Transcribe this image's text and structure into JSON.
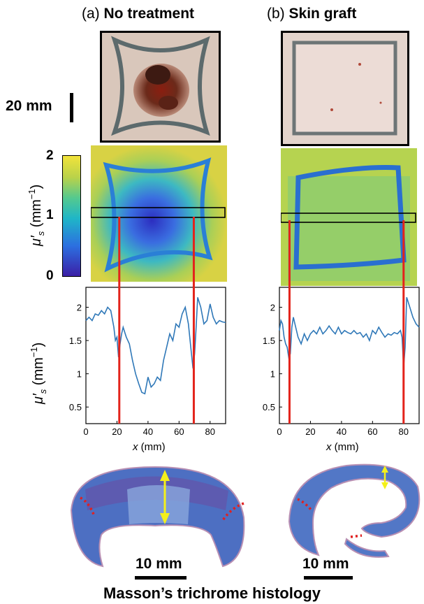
{
  "panels": {
    "a": {
      "tag": "(a)",
      "title": "No treatment"
    },
    "b": {
      "tag": "(b)",
      "title": "Skin graft"
    }
  },
  "photo_scale": "20 mm",
  "colorbar": {
    "ticks": [
      "2",
      "1",
      "0"
    ],
    "label_mu": "μ′",
    "label_sub": "s",
    "label_unit": "(mm",
    "label_exp": "−1",
    "label_close": ")",
    "colors": [
      "#3b1fa6",
      "#2c6fe0",
      "#1fb6c7",
      "#54c98f",
      "#b9d24a",
      "#f2e33a"
    ]
  },
  "histology": {
    "scale_a": "10 mm",
    "scale_b": "10 mm",
    "caption": "Masson’s trichrome histology"
  },
  "chart_data": [
    {
      "type": "line",
      "panel": "a",
      "xlabel_var": "x",
      "xlabel_unit": "(mm)",
      "ylabel": "μ′s (mm−1)",
      "xlim": [
        0,
        90
      ],
      "ylim": [
        0.25,
        2.3
      ],
      "xticks": [
        0,
        20,
        40,
        60,
        80
      ],
      "yticks": [
        0.5,
        1,
        1.5,
        2
      ],
      "ytick_labels": [
        "0.5",
        "1",
        "1.5",
        "2"
      ],
      "markers_x": [
        21.5,
        69.5
      ],
      "x": [
        0,
        2,
        4,
        6,
        8,
        10,
        12,
        14,
        16,
        18,
        19,
        20,
        21,
        22,
        23,
        24,
        26,
        28,
        30,
        32,
        34,
        36,
        38,
        40,
        42,
        44,
        46,
        48,
        50,
        52,
        54,
        56,
        58,
        60,
        62,
        64,
        66,
        68,
        69,
        70,
        71,
        72,
        74,
        76,
        78,
        80,
        82,
        84,
        86,
        88,
        90
      ],
      "y": [
        1.8,
        1.85,
        1.8,
        1.9,
        1.88,
        1.95,
        1.9,
        2.0,
        1.95,
        1.7,
        1.5,
        1.55,
        1.25,
        1.45,
        1.6,
        1.7,
        1.55,
        1.45,
        1.2,
        1.0,
        0.85,
        0.72,
        0.7,
        0.95,
        0.8,
        0.85,
        0.95,
        0.9,
        1.2,
        1.4,
        1.6,
        1.5,
        1.75,
        1.7,
        1.9,
        2.0,
        1.75,
        1.3,
        1.08,
        1.3,
        1.7,
        2.15,
        2.0,
        1.75,
        1.8,
        2.05,
        1.85,
        1.75,
        1.8,
        1.78,
        1.77
      ]
    },
    {
      "type": "line",
      "panel": "b",
      "xlabel_var": "x",
      "xlabel_unit": "(mm)",
      "xlim": [
        0,
        90
      ],
      "ylim": [
        0.25,
        2.3
      ],
      "xticks": [
        0,
        20,
        40,
        60,
        80
      ],
      "yticks": [
        0.5,
        1,
        1.5,
        2
      ],
      "ytick_labels": [
        "0.5",
        "1",
        "1.5",
        "2"
      ],
      "markers_x": [
        6.5,
        80
      ],
      "x": [
        0,
        1,
        2,
        3,
        4,
        5,
        6,
        7,
        8,
        9,
        10,
        12,
        14,
        16,
        18,
        20,
        22,
        24,
        26,
        28,
        30,
        32,
        34,
        36,
        38,
        40,
        42,
        44,
        46,
        48,
        50,
        52,
        54,
        56,
        58,
        60,
        62,
        64,
        66,
        68,
        70,
        72,
        74,
        76,
        78,
        79,
        80,
        81,
        82,
        84,
        86,
        88,
        90
      ],
      "y": [
        1.65,
        1.8,
        1.75,
        1.55,
        1.45,
        1.4,
        1.25,
        1.3,
        1.7,
        1.85,
        1.75,
        1.55,
        1.45,
        1.6,
        1.5,
        1.6,
        1.65,
        1.6,
        1.7,
        1.6,
        1.65,
        1.72,
        1.65,
        1.6,
        1.7,
        1.6,
        1.65,
        1.62,
        1.6,
        1.65,
        1.6,
        1.62,
        1.55,
        1.6,
        1.5,
        1.65,
        1.6,
        1.7,
        1.62,
        1.55,
        1.6,
        1.58,
        1.62,
        1.6,
        1.65,
        1.55,
        1.1,
        1.4,
        2.15,
        2.0,
        1.85,
        1.75,
        1.7
      ]
    }
  ]
}
